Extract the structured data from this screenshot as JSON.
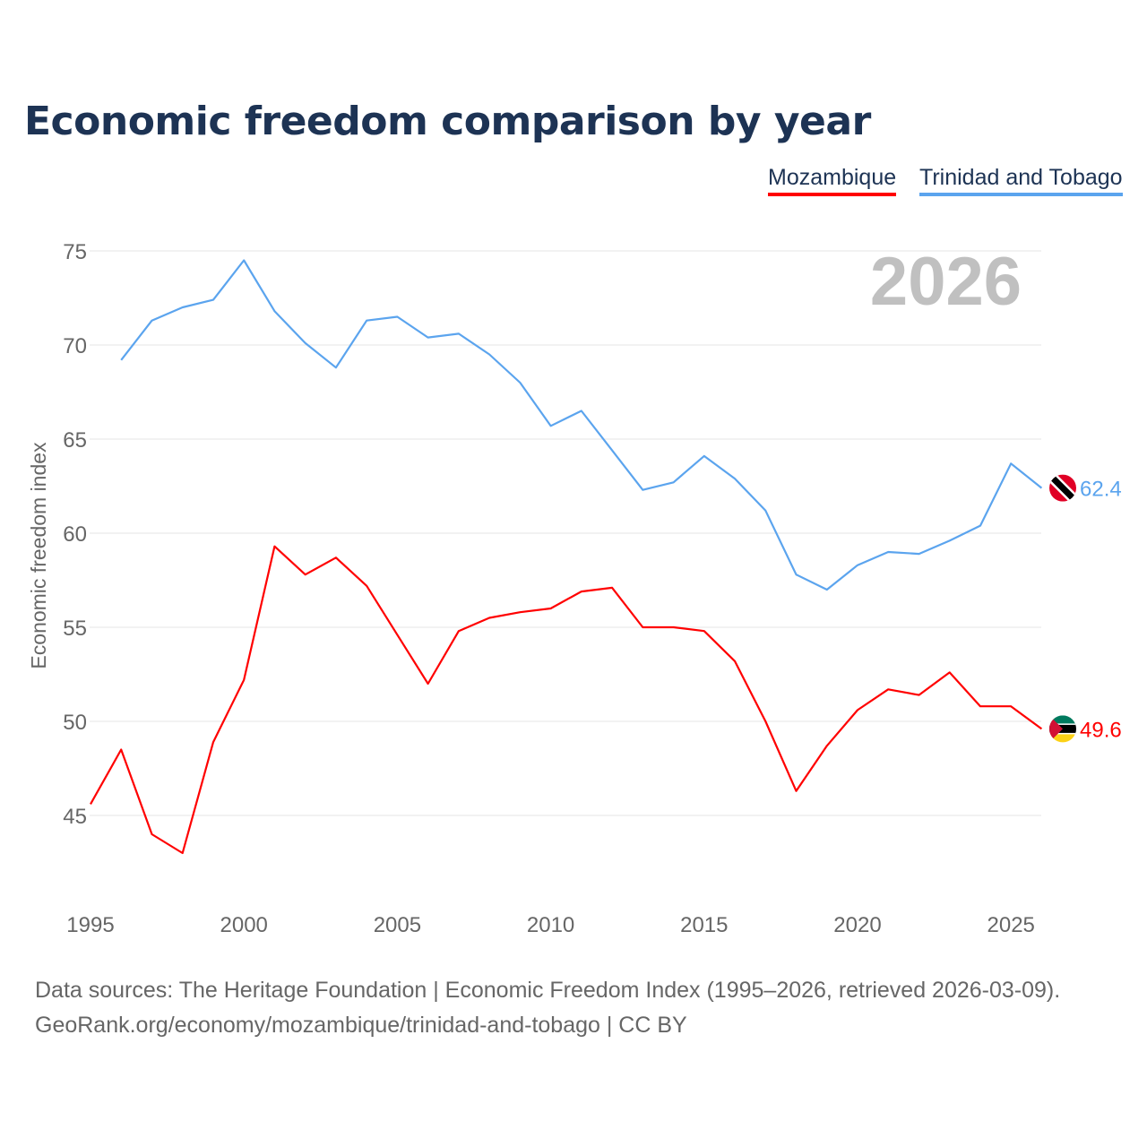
{
  "chart_data": {
    "type": "line",
    "title": "Economic freedom comparison by year",
    "ylabel": "Economic freedom index",
    "xlabel": "",
    "ylim": [
      41,
      77
    ],
    "xlim": [
      1995,
      2026
    ],
    "yticks": [
      45,
      50,
      55,
      60,
      65,
      70,
      75
    ],
    "xticks": [
      1995,
      2000,
      2005,
      2010,
      2015,
      2020,
      2025
    ],
    "grid": true,
    "legend_position": "top-right",
    "year_label": "2026",
    "series": [
      {
        "name": "Mozambique",
        "color": "#ff0000",
        "end_label": "49.6",
        "flag": "mozambique-flag",
        "x": [
          1995,
          1996,
          1997,
          1998,
          1999,
          2000,
          2001,
          2002,
          2003,
          2004,
          2005,
          2006,
          2007,
          2008,
          2009,
          2010,
          2011,
          2012,
          2013,
          2014,
          2015,
          2016,
          2017,
          2018,
          2019,
          2020,
          2021,
          2022,
          2023,
          2024,
          2025,
          2026
        ],
        "values": [
          45.6,
          48.5,
          44.0,
          43.0,
          48.9,
          52.2,
          59.3,
          57.8,
          58.7,
          57.2,
          54.6,
          52.0,
          54.8,
          55.5,
          55.8,
          56.0,
          56.9,
          57.1,
          55.0,
          55.0,
          54.8,
          53.2,
          50.0,
          46.3,
          48.7,
          50.6,
          51.7,
          51.4,
          52.6,
          50.8,
          50.8,
          49.6
        ]
      },
      {
        "name": "Trinidad and Tobago",
        "color": "#5ba4ee",
        "end_label": "62.4",
        "flag": "trinidad-flag",
        "x": [
          1996,
          1997,
          1998,
          1999,
          2000,
          2001,
          2002,
          2003,
          2004,
          2005,
          2006,
          2007,
          2008,
          2009,
          2010,
          2011,
          2012,
          2013,
          2014,
          2015,
          2016,
          2017,
          2018,
          2019,
          2020,
          2021,
          2022,
          2023,
          2024,
          2025,
          2026
        ],
        "values": [
          69.2,
          71.3,
          72.0,
          72.4,
          74.5,
          71.8,
          70.1,
          68.8,
          71.3,
          71.5,
          70.4,
          70.6,
          69.5,
          68.0,
          65.7,
          66.5,
          64.4,
          62.3,
          62.7,
          64.1,
          62.9,
          61.2,
          57.8,
          57.0,
          58.3,
          59.0,
          58.9,
          59.6,
          60.4,
          63.7,
          62.4
        ]
      }
    ]
  },
  "footer": {
    "line1": "Data sources: The Heritage Foundation | Economic Freedom Index (1995–2026, retrieved 2026-03-09).",
    "line2": "GeoRank.org/economy/mozambique/trinidad-and-tobago | CC BY"
  }
}
